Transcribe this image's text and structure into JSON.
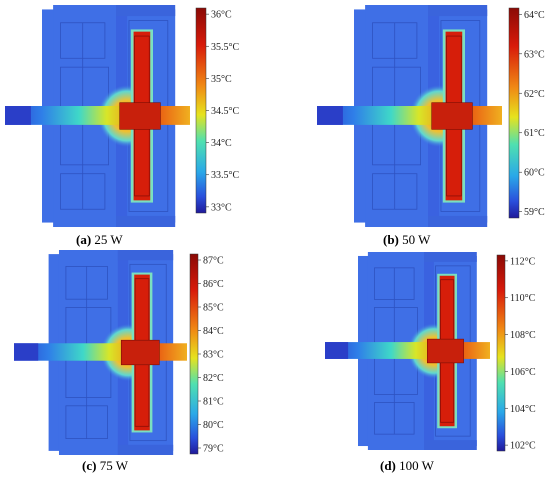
{
  "panels": [
    {
      "letter": "(a)",
      "caption": "25 W",
      "colorbar": {
        "ticks": [
          "36°C",
          "35.5°C",
          "35°C",
          "34.5°C",
          "34°C",
          "33.5°C",
          "33°C"
        ]
      }
    },
    {
      "letter": "(b)",
      "caption": "50 W",
      "colorbar": {
        "ticks": [
          "64°C",
          "63°C",
          "62°C",
          "61°C",
          "60°C",
          "59°C"
        ]
      }
    },
    {
      "letter": "(c)",
      "caption": "75 W",
      "colorbar": {
        "ticks": [
          "87°C",
          "86°C",
          "85°C",
          "84°C",
          "83°C",
          "82°C",
          "81°C",
          "80°C",
          "79°C"
        ]
      }
    },
    {
      "letter": "(d)",
      "caption": "100 W",
      "colorbar": {
        "ticks": [
          "112°C",
          "110°C",
          "108°C",
          "106°C",
          "104°C",
          "102°C"
        ]
      }
    }
  ],
  "colors": {
    "cold": "#2a55d8",
    "cool": "#3f6fe6",
    "hot": "#d61e0a",
    "background": "#ffffff"
  }
}
